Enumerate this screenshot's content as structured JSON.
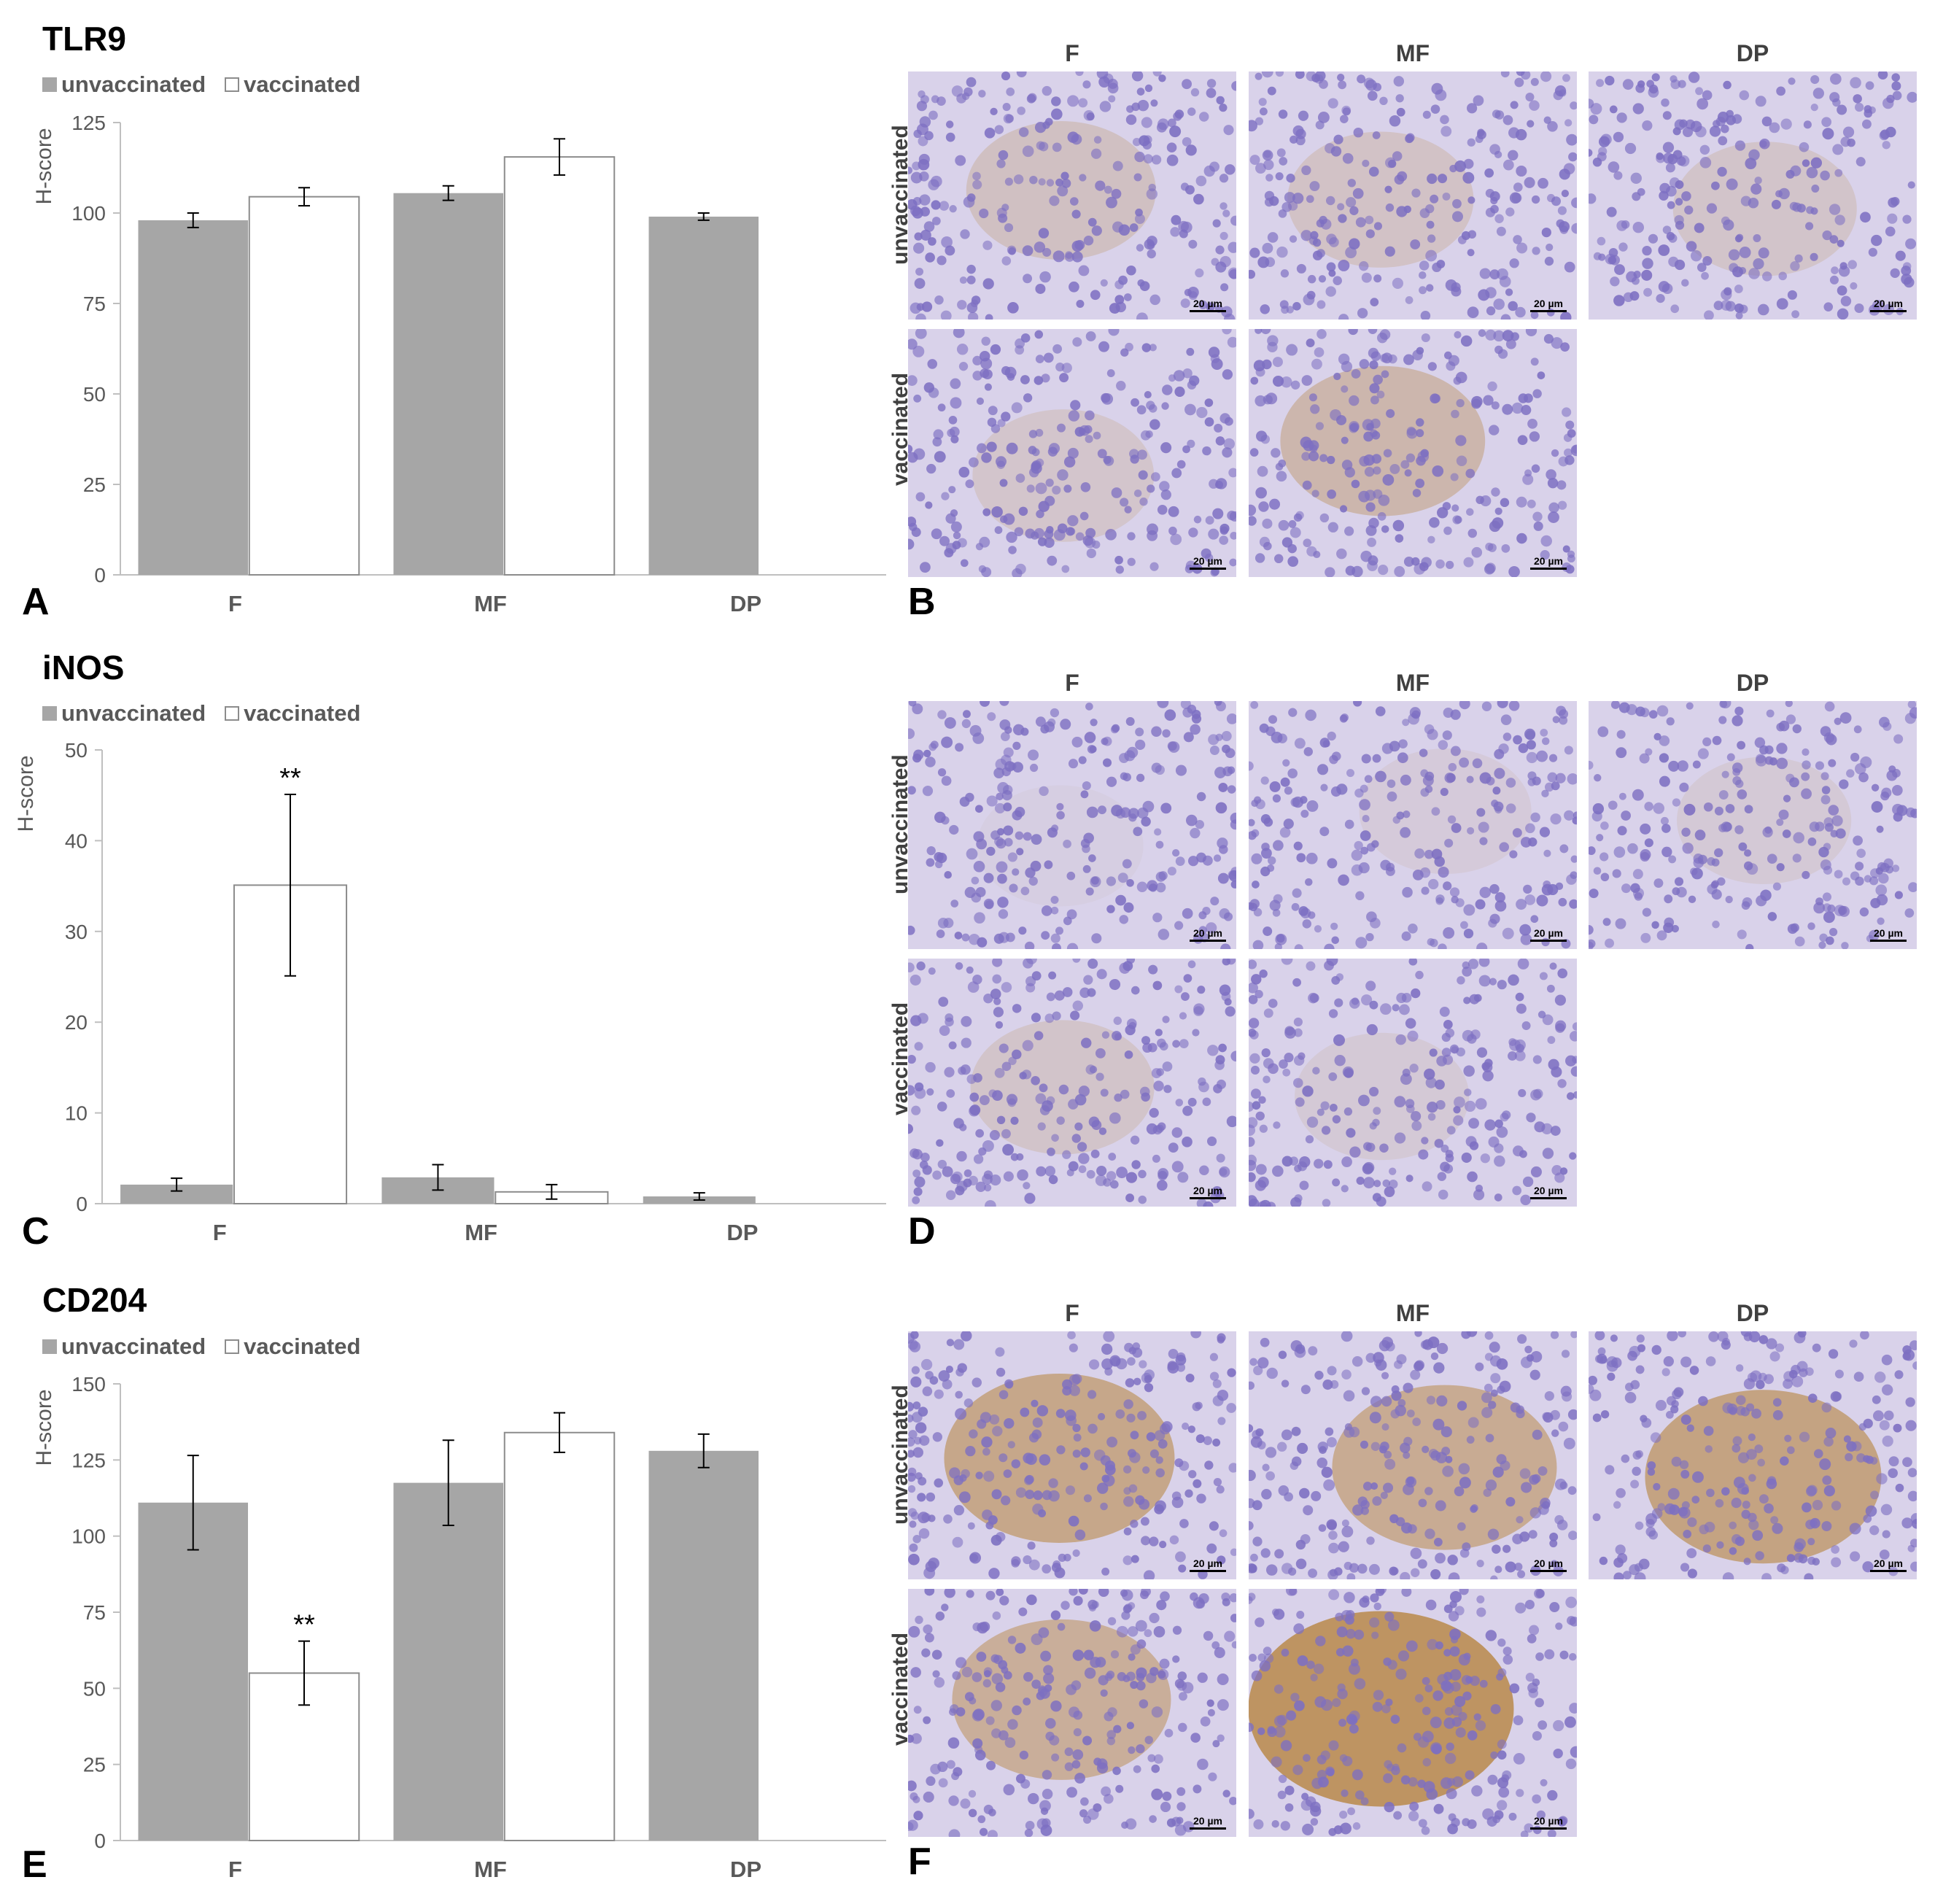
{
  "legend": {
    "series1": "unvaccinated",
    "series2": "vaccinated"
  },
  "colors": {
    "unvaccinated": "#a6a6a6",
    "vaccinated": "#ffffff",
    "bar_outline": "#8c8c8c",
    "axis": "#bfbfbf",
    "text": "#595959",
    "stain_brown": "#b98a4a",
    "stain_blue": "#7d6fc2"
  },
  "chart_data": [
    {
      "type": "bar",
      "panel": "A",
      "title": "TLR9",
      "ylabel": "H-score",
      "categories": [
        "F",
        "MF",
        "DP"
      ],
      "ylim": [
        0,
        125
      ],
      "yticks": [
        0,
        25,
        50,
        75,
        100,
        125
      ],
      "series": [
        {
          "name": "unvaccinated",
          "values": [
            98,
            105.5,
            99
          ],
          "errors": [
            2,
            2,
            1
          ]
        },
        {
          "name": "vaccinated",
          "values": [
            104.5,
            115.5,
            null
          ],
          "errors": [
            2.5,
            5,
            null
          ]
        }
      ],
      "annotations": []
    },
    {
      "type": "bar",
      "panel": "C",
      "title": "iNOS",
      "ylabel": "H-score",
      "categories": [
        "F",
        "MF",
        "DP"
      ],
      "ylim": [
        0,
        50
      ],
      "yticks": [
        0,
        10,
        20,
        30,
        40,
        50
      ],
      "series": [
        {
          "name": "unvaccinated",
          "values": [
            2.1,
            2.9,
            0.8
          ],
          "errors": [
            0.7,
            1.4,
            0.4
          ]
        },
        {
          "name": "vaccinated",
          "values": [
            35.1,
            1.3,
            null
          ],
          "errors": [
            10,
            0.8,
            null
          ]
        }
      ],
      "annotations": [
        {
          "series": 1,
          "category": 0,
          "text": "**"
        }
      ]
    },
    {
      "type": "bar",
      "panel": "E",
      "title": "CD204",
      "ylabel": "H-score",
      "categories": [
        "F",
        "MF",
        "DP"
      ],
      "ylim": [
        0,
        150
      ],
      "yticks": [
        0,
        25,
        50,
        75,
        100,
        125,
        150
      ],
      "series": [
        {
          "name": "unvaccinated",
          "values": [
            111,
            117.5,
            128
          ],
          "errors": [
            15.5,
            14,
            5.5
          ]
        },
        {
          "name": "vaccinated",
          "values": [
            55,
            134,
            null
          ],
          "errors": [
            10.5,
            6.5,
            null
          ]
        }
      ],
      "annotations": [
        {
          "series": 1,
          "category": 0,
          "text": "**"
        }
      ]
    }
  ],
  "micro_panels": [
    {
      "letter": "B",
      "columns": [
        "F",
        "MF",
        "DP"
      ],
      "rows": [
        "unvaccinated",
        "vaccinated"
      ],
      "scale_label": "20 µm"
    },
    {
      "letter": "D",
      "columns": [
        "F",
        "MF",
        "DP"
      ],
      "rows": [
        "unvaccinated",
        "vaccinated"
      ],
      "scale_label": "20 µm"
    },
    {
      "letter": "F",
      "columns": [
        "F",
        "MF",
        "DP"
      ],
      "rows": [
        "unvaccinated",
        "vaccinated"
      ],
      "scale_label": "20 µm"
    }
  ]
}
